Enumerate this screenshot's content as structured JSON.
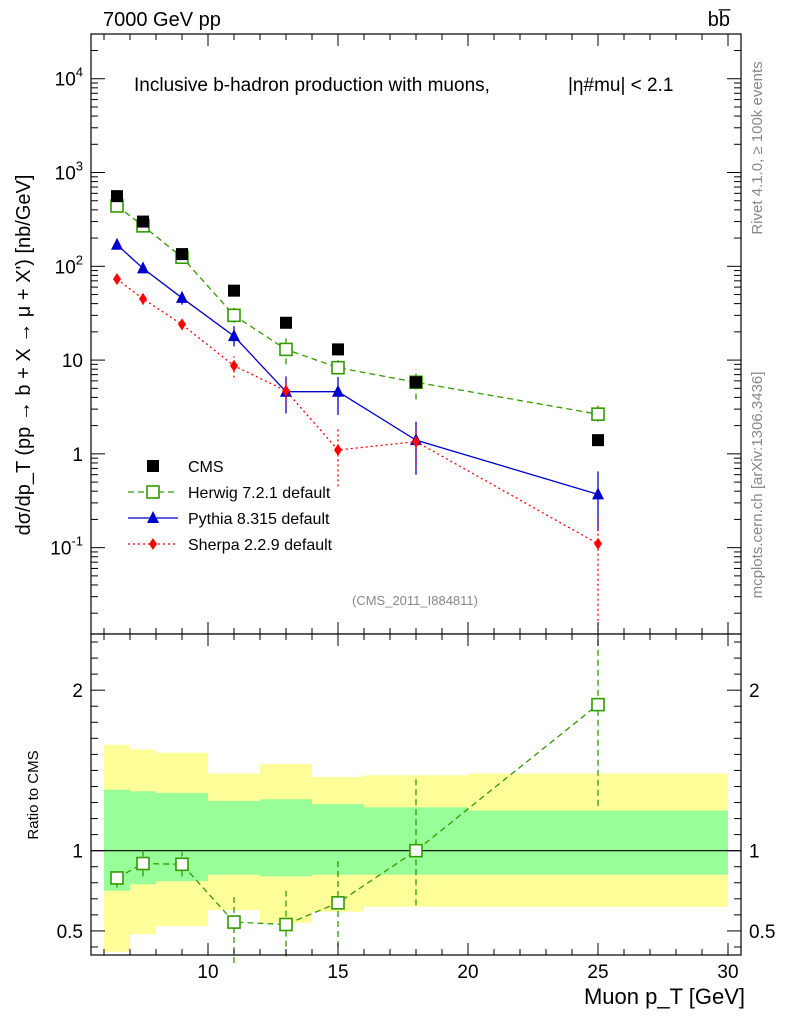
{
  "header": {
    "energy_label": "7000 GeV pp",
    "process_label": "bb̅",
    "title": "Inclusive b-hadron production with muons,",
    "title_cut": "|η#mu| < 2.1",
    "side_rivet": "Rivet 4.1.0, ≥ 100k events",
    "side_mcplots": "mcplots.cern.ch [arXiv:1306.3436]",
    "analysis_id": "(CMS_2011_I884811)"
  },
  "chart_data": [
    {
      "type": "scatter",
      "panel": "main",
      "ylabel": "dσ/dp_T (pp → b + X → μ + X') [nb/GeV]",
      "yscale": "log",
      "ylim": [
        0.012,
        30000
      ],
      "xlim": [
        5.5,
        30.5
      ],
      "y_ticks": [
        {
          "value": 0.1,
          "label": "10^-1"
        },
        {
          "value": 1,
          "label": "1"
        },
        {
          "value": 10,
          "label": "10"
        },
        {
          "value": 100,
          "label": "10^2"
        },
        {
          "value": 1000,
          "label": "10^3"
        },
        {
          "value": 10000,
          "label": "10^4"
        }
      ],
      "series": [
        {
          "name": "CMS",
          "color": "#000000",
          "marker": "filled-square",
          "line": "none",
          "x": [
            6.5,
            7.5,
            9.0,
            11.0,
            13.0,
            15.0,
            18.0,
            25.0
          ],
          "y": [
            560,
            300,
            135,
            55,
            25,
            13,
            5.8,
            1.4
          ]
        },
        {
          "name": "Herwig 7.2.1 default",
          "color": "#339900",
          "marker": "open-square",
          "line": "dashed",
          "x": [
            6.5,
            7.5,
            9.0,
            11.0,
            13.0,
            15.0,
            18.0,
            25.0
          ],
          "y": [
            440,
            270,
            125,
            30,
            13,
            8.3,
            5.8,
            2.65
          ],
          "err_lo": [
            400,
            250,
            115,
            25,
            9,
            7.0,
            3.8,
            2.2
          ],
          "err_hi": [
            490,
            295,
            140,
            36,
            18,
            10.0,
            8.0,
            3.6
          ]
        },
        {
          "name": "Pythia 8.315 default",
          "color": "#0000cc",
          "marker": "filled-triangle",
          "line": "solid",
          "x": [
            6.5,
            7.5,
            9.0,
            11.0,
            13.0,
            15.0,
            18.0,
            25.0
          ],
          "y": [
            170,
            95,
            46,
            18,
            4.6,
            4.6,
            1.4,
            0.37
          ],
          "err_lo": [
            155,
            85,
            39,
            14,
            2.7,
            2.6,
            0.6,
            0.15
          ],
          "err_hi": [
            185,
            105,
            53,
            23,
            6.7,
            6.6,
            2.2,
            0.65
          ]
        },
        {
          "name": "Sherpa 2.2.9 default",
          "color": "#ff0000",
          "marker": "filled-diamond",
          "line": "dotted",
          "x": [
            6.5,
            7.5,
            9.0,
            11.0,
            13.0,
            15.0,
            18.0,
            25.0
          ],
          "y": [
            73,
            45,
            24,
            8.7,
            4.7,
            1.1,
            1.35,
            0.11
          ],
          "err_lo": [
            66,
            39,
            21,
            6.5,
            3.3,
            0.45,
            0.7,
            0.013
          ],
          "err_hi": [
            80,
            51,
            27,
            11,
            6.3,
            1.85,
            2.05,
            0.22
          ]
        }
      ]
    },
    {
      "type": "scatter",
      "panel": "ratio",
      "ylabel": "Ratio to CMS",
      "xlabel": "Muon p_T [GeV]",
      "ylim": [
        0.35,
        2.35
      ],
      "xlim": [
        5.5,
        30.5
      ],
      "x_ticks": [
        10,
        15,
        20,
        25,
        30
      ],
      "y_ticks": [
        0.5,
        1,
        2
      ],
      "reference_line": 1,
      "bands": [
        {
          "x": [
            6,
            7
          ],
          "inner": [
            0.75,
            1.38
          ],
          "outer": [
            0.37,
            1.66
          ]
        },
        {
          "x": [
            7,
            8
          ],
          "inner": [
            0.79,
            1.37
          ],
          "outer": [
            0.48,
            1.63
          ]
        },
        {
          "x": [
            8,
            10
          ],
          "inner": [
            0.81,
            1.36
          ],
          "outer": [
            0.53,
            1.61
          ]
        },
        {
          "x": [
            10,
            12
          ],
          "inner": [
            0.85,
            1.31
          ],
          "outer": [
            0.63,
            1.48
          ]
        },
        {
          "x": [
            12,
            14
          ],
          "inner": [
            0.84,
            1.32
          ],
          "outer": [
            0.55,
            1.54
          ]
        },
        {
          "x": [
            14,
            16
          ],
          "inner": [
            0.85,
            1.29
          ],
          "outer": [
            0.62,
            1.46
          ]
        },
        {
          "x": [
            16,
            20
          ],
          "inner": [
            0.85,
            1.27
          ],
          "outer": [
            0.65,
            1.47
          ]
        },
        {
          "x": [
            20,
            30
          ],
          "inner": [
            0.85,
            1.25
          ],
          "outer": [
            0.65,
            1.48
          ]
        }
      ],
      "series": [
        {
          "name": "Herwig 7.2.1 default",
          "color": "#339900",
          "marker": "open-square",
          "line": "dashed",
          "x": [
            6.5,
            7.5,
            9.0,
            11.0,
            13.0,
            15.0,
            18.0,
            25.0
          ],
          "y": [
            0.83,
            0.92,
            0.915,
            0.555,
            0.54,
            0.675,
            1.0,
            1.91
          ],
          "err_lo": [
            0.77,
            0.84,
            0.84,
            0.3,
            0.34,
            0.4,
            0.66,
            1.28
          ],
          "err_hi": [
            0.89,
            1.0,
            0.99,
            0.71,
            0.77,
            0.94,
            1.45,
            2.35
          ]
        }
      ]
    }
  ]
}
